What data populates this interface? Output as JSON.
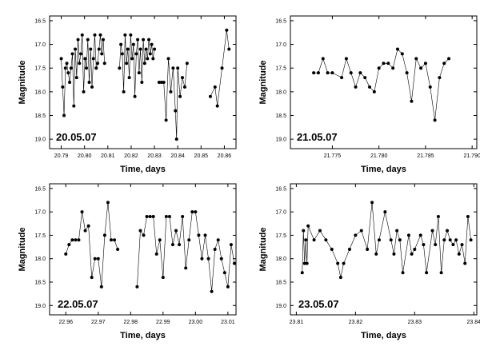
{
  "chart_data": [
    {
      "type": "scatter",
      "date_label": "20.05.07",
      "xlabel": "Time, days",
      "ylabel": "Magnitude",
      "xlim": [
        20.785,
        20.865
      ],
      "ylim": [
        19.2,
        16.4
      ],
      "xticks": [
        "20.79",
        "20.80",
        "20.81",
        "20.82",
        "20.83",
        "20.84",
        "20.85",
        "20.86"
      ],
      "yticks": [
        "16.5",
        "17.0",
        "17.5",
        "18.0",
        "18.5",
        "19.0"
      ],
      "segments": [
        [
          [
            20.79,
            17.3
          ],
          [
            20.7906,
            17.9
          ],
          [
            20.7912,
            18.5
          ],
          [
            20.7918,
            17.5
          ],
          [
            20.7924,
            17.4
          ],
          [
            20.793,
            17.6
          ],
          [
            20.7936,
            17.8
          ],
          [
            20.7942,
            17.5
          ],
          [
            20.7948,
            17.2
          ],
          [
            20.7954,
            18.3
          ],
          [
            20.796,
            17.1
          ],
          [
            20.7966,
            17.7
          ],
          [
            20.7972,
            16.9
          ],
          [
            20.7978,
            17.4
          ],
          [
            20.7984,
            17.2
          ],
          [
            20.799,
            16.8
          ],
          [
            20.7996,
            18.0
          ],
          [
            20.8002,
            17.3
          ],
          [
            20.8008,
            17.5
          ],
          [
            20.8014,
            16.9
          ],
          [
            20.802,
            17.8
          ],
          [
            20.8026,
            17.1
          ],
          [
            20.8032,
            17.9
          ],
          [
            20.8038,
            17.3
          ],
          [
            20.8044,
            16.8
          ],
          [
            20.805,
            17.5
          ],
          [
            20.8056,
            17.4
          ],
          [
            20.8062,
            17.1
          ],
          [
            20.8068,
            16.8
          ],
          [
            20.8074,
            17.2
          ],
          [
            20.808,
            16.9
          ],
          [
            20.8086,
            17.4
          ]
        ],
        [
          [
            20.815,
            17.5
          ],
          [
            20.8156,
            17.0
          ],
          [
            20.8162,
            17.2
          ],
          [
            20.8168,
            18.0
          ],
          [
            20.8174,
            16.8
          ],
          [
            20.818,
            17.4
          ],
          [
            20.8186,
            17.1
          ],
          [
            20.8192,
            17.7
          ],
          [
            20.8198,
            16.8
          ],
          [
            20.8204,
            17.3
          ],
          [
            20.821,
            17.0
          ],
          [
            20.8216,
            18.1
          ],
          [
            20.8222,
            17.2
          ],
          [
            20.8228,
            16.9
          ],
          [
            20.8234,
            17.6
          ],
          [
            20.824,
            17.1
          ],
          [
            20.8246,
            17.8
          ],
          [
            20.8252,
            16.9
          ],
          [
            20.8258,
            17.4
          ],
          [
            20.8264,
            17.1
          ],
          [
            20.827,
            17.3
          ],
          [
            20.8276,
            16.9
          ],
          [
            20.8282,
            17.2
          ],
          [
            20.8288,
            17.0
          ],
          [
            20.8294,
            17.3
          ],
          [
            20.83,
            17.1
          ]
        ],
        [
          [
            20.832,
            17.8
          ],
          [
            20.833,
            17.8
          ],
          [
            20.834,
            17.8
          ],
          [
            20.835,
            18.6
          ],
          [
            20.836,
            17.3
          ],
          [
            20.837,
            18.0
          ],
          [
            20.838,
            17.5
          ],
          [
            20.839,
            18.4
          ],
          [
            20.8395,
            19.0
          ],
          [
            20.84,
            17.5
          ],
          [
            20.841,
            18.1
          ],
          [
            20.842,
            17.7
          ],
          [
            20.843,
            17.9
          ],
          [
            20.844,
            17.4
          ]
        ],
        [
          [
            20.854,
            18.1
          ],
          [
            20.856,
            17.9
          ],
          [
            20.857,
            18.3
          ],
          [
            20.859,
            17.5
          ],
          [
            20.861,
            16.7
          ],
          [
            20.862,
            17.1
          ]
        ]
      ]
    },
    {
      "type": "scatter",
      "date_label": "21.05.07",
      "xlabel": "Time, days",
      "ylabel": "Magnitude",
      "xlim": [
        21.7705,
        21.7905
      ],
      "ylim": [
        19.2,
        16.4
      ],
      "xticks": [
        "21.775",
        "21.780",
        "21.785",
        "21.790"
      ],
      "yticks": [
        "16.5",
        "17.0",
        "17.5",
        "18.0",
        "18.5",
        "19.0"
      ],
      "segments": [
        [
          [
            21.773,
            17.6
          ],
          [
            21.7735,
            17.6
          ],
          [
            21.774,
            17.3
          ],
          [
            21.7745,
            17.6
          ],
          [
            21.775,
            17.6
          ],
          [
            21.776,
            17.7
          ],
          [
            21.7765,
            17.3
          ],
          [
            21.777,
            17.6
          ],
          [
            21.7775,
            17.9
          ],
          [
            21.778,
            17.6
          ],
          [
            21.7785,
            17.7
          ],
          [
            21.779,
            17.9
          ],
          [
            21.7795,
            18.0
          ],
          [
            21.78,
            17.5
          ],
          [
            21.7805,
            17.4
          ],
          [
            21.781,
            17.4
          ],
          [
            21.7815,
            17.5
          ],
          [
            21.782,
            17.1
          ],
          [
            21.7825,
            17.2
          ],
          [
            21.783,
            17.6
          ],
          [
            21.7835,
            18.2
          ],
          [
            21.784,
            17.3
          ],
          [
            21.7845,
            17.5
          ],
          [
            21.785,
            17.4
          ],
          [
            21.7855,
            17.9
          ],
          [
            21.786,
            18.6
          ],
          [
            21.7865,
            17.7
          ],
          [
            21.787,
            17.4
          ],
          [
            21.7875,
            17.3
          ]
        ]
      ]
    },
    {
      "type": "scatter",
      "date_label": "22.05.07",
      "xlabel": "Time, days",
      "ylabel": "Magnitude",
      "xlim": [
        22.955,
        23.0125
      ],
      "ylim": [
        19.2,
        16.4
      ],
      "xticks": [
        "22.96",
        "22.97",
        "22.98",
        "22.99",
        "23.00",
        "23.01"
      ],
      "yticks": [
        "16.5",
        "17.0",
        "17.5",
        "18.0",
        "18.5",
        "19.0"
      ],
      "segments": [
        [
          [
            22.96,
            17.9
          ],
          [
            22.961,
            17.7
          ],
          [
            22.962,
            17.6
          ],
          [
            22.963,
            17.6
          ],
          [
            22.964,
            17.6
          ],
          [
            22.965,
            17.0
          ],
          [
            22.966,
            17.4
          ],
          [
            22.967,
            17.3
          ],
          [
            22.968,
            18.4
          ],
          [
            22.969,
            18.0
          ],
          [
            22.97,
            18.0
          ],
          [
            22.971,
            18.6
          ],
          [
            22.972,
            17.5
          ],
          [
            22.973,
            16.8
          ],
          [
            22.974,
            17.6
          ],
          [
            22.975,
            17.6
          ],
          [
            22.976,
            17.8
          ]
        ],
        [
          [
            22.982,
            18.6
          ],
          [
            22.983,
            17.4
          ],
          [
            22.984,
            17.5
          ],
          [
            22.985,
            17.1
          ],
          [
            22.986,
            17.1
          ],
          [
            22.987,
            17.1
          ],
          [
            22.988,
            17.9
          ],
          [
            22.989,
            17.6
          ],
          [
            22.99,
            18.4
          ],
          [
            22.991,
            17.1
          ],
          [
            22.992,
            17.1
          ],
          [
            22.993,
            17.7
          ],
          [
            22.994,
            17.4
          ],
          [
            22.995,
            17.7
          ],
          [
            22.996,
            17.1
          ],
          [
            22.997,
            18.2
          ],
          [
            22.998,
            17.6
          ],
          [
            22.999,
            17.0
          ],
          [
            23.0,
            17.0
          ],
          [
            23.001,
            17.5
          ],
          [
            23.002,
            18.0
          ],
          [
            23.003,
            17.5
          ],
          [
            23.004,
            18.0
          ],
          [
            23.005,
            18.7
          ],
          [
            23.006,
            17.8
          ],
          [
            23.007,
            17.6
          ],
          [
            23.008,
            18.0
          ],
          [
            23.009,
            18.3
          ],
          [
            23.01,
            18.6
          ],
          [
            23.011,
            17.7
          ],
          [
            23.012,
            18.1
          ]
        ]
      ]
    },
    {
      "type": "scatter",
      "date_label": "23.05.07",
      "xlabel": "Time, days",
      "ylabel": "Magnitude",
      "xlim": [
        23.809,
        23.8405
      ],
      "ylim": [
        19.2,
        16.4
      ],
      "xticks": [
        "23.81",
        "23.82",
        "23.83",
        "23.84"
      ],
      "yticks": [
        "16.5",
        "17.0",
        "17.5",
        "18.0",
        "18.5",
        "19.0"
      ],
      "segments": [
        [
          [
            23.811,
            18.3
          ],
          [
            23.8112,
            17.4
          ],
          [
            23.8114,
            18.1
          ],
          [
            23.8116,
            17.6
          ],
          [
            23.8118,
            18.1
          ],
          [
            23.812,
            17.3
          ],
          [
            23.813,
            17.6
          ],
          [
            23.814,
            17.4
          ],
          [
            23.815,
            17.6
          ],
          [
            23.816,
            17.8
          ],
          [
            23.817,
            18.1
          ],
          [
            23.8175,
            18.4
          ],
          [
            23.818,
            18.1
          ],
          [
            23.819,
            17.8
          ],
          [
            23.82,
            17.5
          ],
          [
            23.821,
            17.4
          ],
          [
            23.822,
            17.8
          ],
          [
            23.8228,
            16.8
          ],
          [
            23.8235,
            17.9
          ],
          [
            23.824,
            17.6
          ],
          [
            23.825,
            17.0
          ],
          [
            23.826,
            17.6
          ],
          [
            23.8265,
            17.9
          ],
          [
            23.827,
            17.4
          ],
          [
            23.8275,
            17.6
          ],
          [
            23.828,
            18.3
          ],
          [
            23.829,
            17.5
          ],
          [
            23.8295,
            17.9
          ],
          [
            23.83,
            17.8
          ],
          [
            23.831,
            17.5
          ],
          [
            23.8315,
            17.7
          ],
          [
            23.832,
            18.3
          ],
          [
            23.833,
            17.4
          ],
          [
            23.8335,
            17.7
          ],
          [
            23.834,
            17.1
          ],
          [
            23.8345,
            18.3
          ],
          [
            23.835,
            17.6
          ],
          [
            23.8355,
            17.4
          ],
          [
            23.836,
            17.6
          ],
          [
            23.8365,
            17.7
          ],
          [
            23.837,
            17.6
          ],
          [
            23.8375,
            17.9
          ],
          [
            23.838,
            17.7
          ],
          [
            23.8385,
            18.1
          ],
          [
            23.839,
            17.1
          ],
          [
            23.8395,
            17.6
          ]
        ]
      ]
    }
  ]
}
